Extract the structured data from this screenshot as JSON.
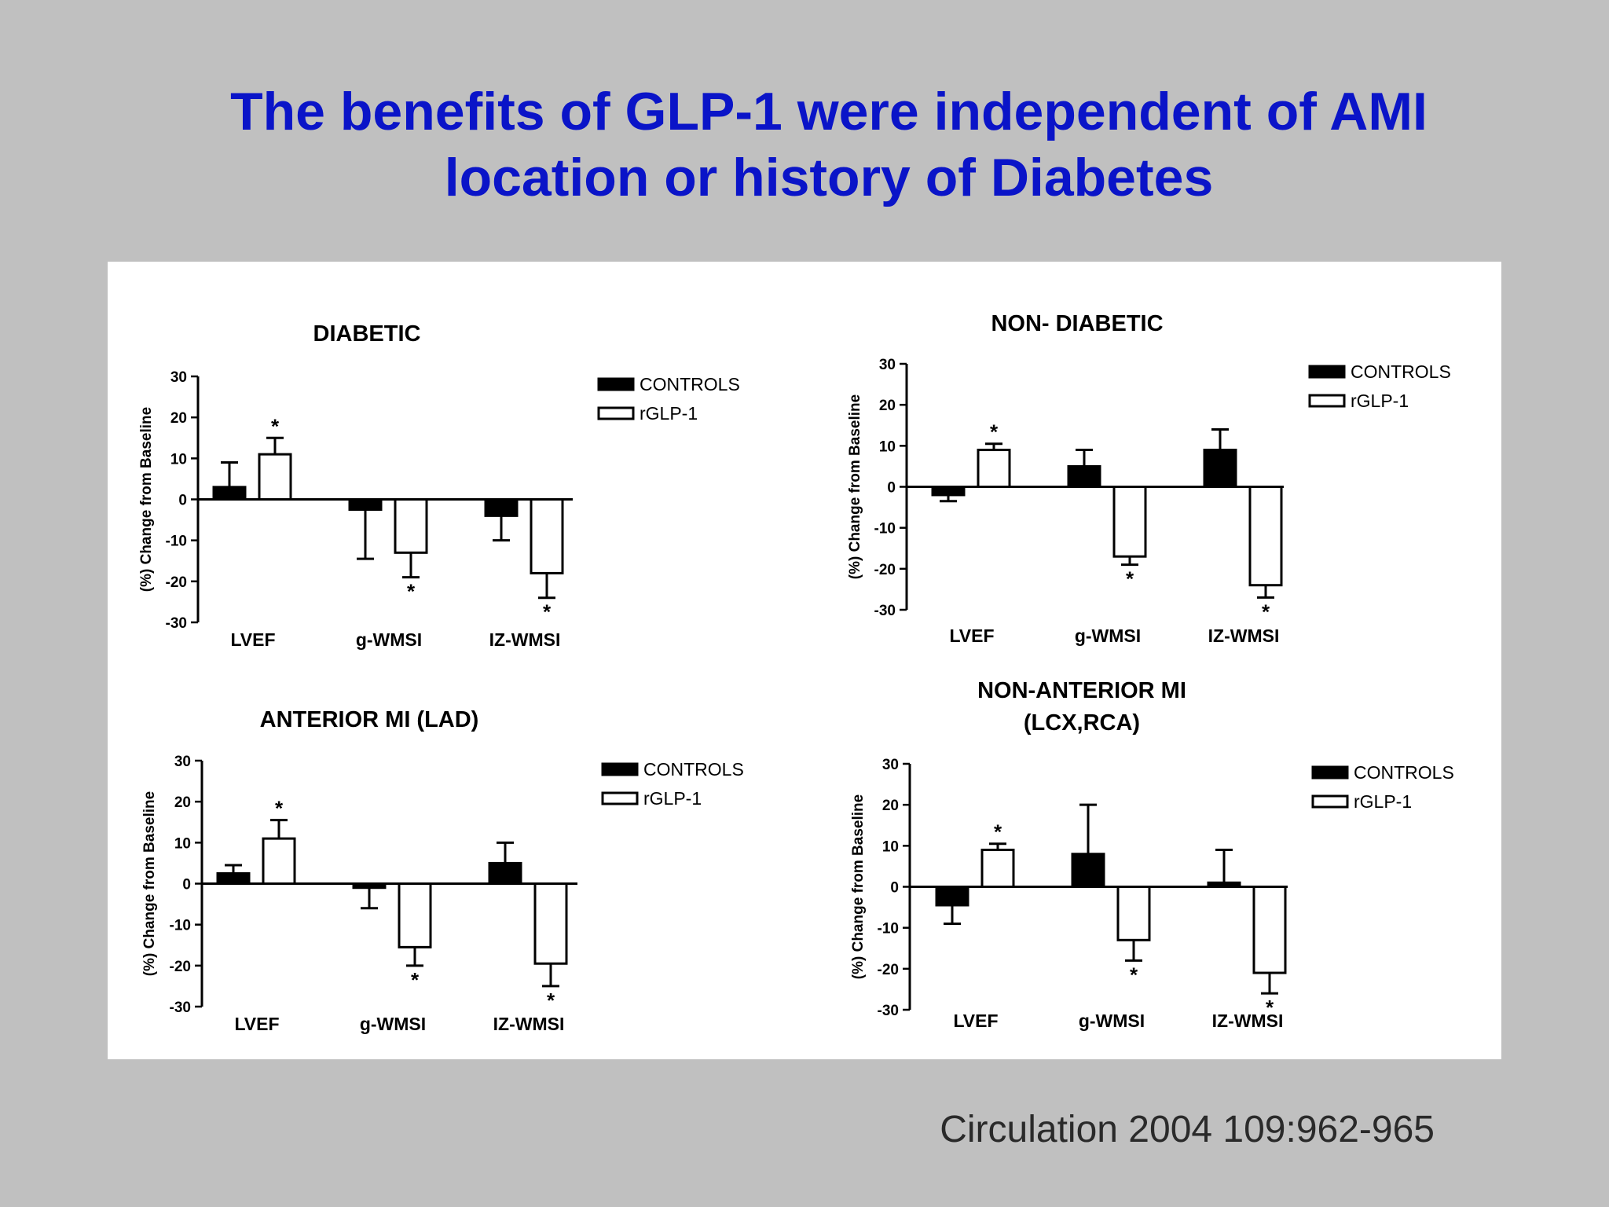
{
  "slide": {
    "title_line1": "The benefits of GLP-1 were independent of AMI",
    "title_line2": "location or history of Diabetes",
    "citation": "Circulation 2004 109:962-965",
    "title_color": "#0a14c8",
    "background_color": "#c0c0c0"
  },
  "chart_data": [
    {
      "type": "bar",
      "title": "DIABETIC",
      "ylabel": "(%) Change from Baseline",
      "ylim": [
        -30,
        30
      ],
      "yticks": [
        "30",
        "20",
        "10",
        "0",
        "-10",
        "-20",
        "-30"
      ],
      "categories": [
        "LVEF",
        "g-WMSI",
        "IZ-WMSI"
      ],
      "legend": [
        "CONTROLS",
        "rGLP-1"
      ],
      "legend_position": "right",
      "series": [
        {
          "name": "CONTROLS",
          "fill": "#000000",
          "values": [
            3,
            -2.5,
            -4
          ],
          "errors": [
            6,
            12,
            6
          ],
          "significant": [
            false,
            false,
            false
          ]
        },
        {
          "name": "rGLP-1",
          "fill": "#ffffff",
          "values": [
            11,
            -13,
            -18
          ],
          "errors": [
            4,
            6,
            6
          ],
          "significant": [
            true,
            true,
            true
          ]
        }
      ],
      "significance_marker": "*"
    },
    {
      "type": "bar",
      "title": "NON- DIABETIC",
      "ylabel": "(%) Change from Baseline",
      "ylim": [
        -30,
        30
      ],
      "yticks": [
        "30",
        "20",
        "10",
        "0",
        "-10",
        "-20",
        "-30"
      ],
      "categories": [
        "LVEF",
        "g-WMSI",
        "IZ-WMSI"
      ],
      "legend": [
        "CONTROLS",
        "rGLP-1"
      ],
      "legend_position": "right",
      "series": [
        {
          "name": "CONTROLS",
          "fill": "#000000",
          "values": [
            -2,
            5,
            9
          ],
          "errors": [
            1.5,
            4,
            5
          ],
          "significant": [
            false,
            false,
            false
          ]
        },
        {
          "name": "rGLP-1",
          "fill": "#ffffff",
          "values": [
            9,
            -17,
            -24
          ],
          "errors": [
            1.5,
            2,
            3
          ],
          "significant": [
            true,
            true,
            true
          ]
        }
      ],
      "significance_marker": "*"
    },
    {
      "type": "bar",
      "title": "ANTERIOR  MI (LAD)",
      "ylabel": "(%) Change from Baseline",
      "ylim": [
        -30,
        30
      ],
      "yticks": [
        "30",
        "20",
        "10",
        "0",
        "-10",
        "-20",
        "-30"
      ],
      "categories": [
        "LVEF",
        "g-WMSI",
        "IZ-WMSI"
      ],
      "legend": [
        "CONTROLS",
        "rGLP-1"
      ],
      "legend_position": "right",
      "series": [
        {
          "name": "CONTROLS",
          "fill": "#000000",
          "values": [
            2.5,
            -1,
            5
          ],
          "errors": [
            2,
            5,
            5
          ],
          "significant": [
            false,
            false,
            false
          ]
        },
        {
          "name": "rGLP-1",
          "fill": "#ffffff",
          "values": [
            11,
            -15.5,
            -19.5
          ],
          "errors": [
            4.5,
            4.5,
            5.5
          ],
          "significant": [
            true,
            true,
            true
          ]
        }
      ],
      "significance_marker": "*"
    },
    {
      "type": "bar",
      "title": "NON-ANTERIOR MI",
      "subtitle": "(LCX,RCA)",
      "ylabel": "(%) Change from Baseline",
      "ylim": [
        -30,
        30
      ],
      "yticks": [
        "30",
        "20",
        "10",
        "0",
        "-10",
        "-20",
        "-30"
      ],
      "categories": [
        "LVEF",
        "g-WMSI",
        "IZ-WMSI"
      ],
      "legend": [
        "CONTROLS",
        "rGLP-1"
      ],
      "legend_position": "right",
      "series": [
        {
          "name": "CONTROLS",
          "fill": "#000000",
          "values": [
            -4.5,
            8,
            1
          ],
          "errors": [
            4.5,
            12,
            8
          ],
          "significant": [
            false,
            false,
            false
          ]
        },
        {
          "name": "rGLP-1",
          "fill": "#ffffff",
          "values": [
            9,
            -13,
            -21
          ],
          "errors": [
            1.5,
            5,
            5
          ],
          "significant": [
            true,
            true,
            true
          ]
        }
      ],
      "significance_marker": "*"
    }
  ]
}
